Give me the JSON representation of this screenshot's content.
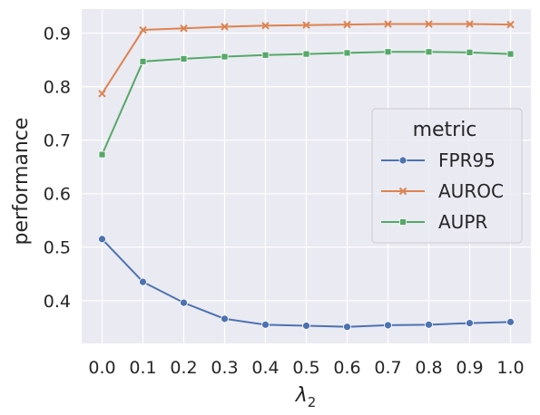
{
  "chart_data": {
    "type": "line",
    "xlabel_main": "λ",
    "xlabel_sub": "2",
    "ylabel": "performance",
    "x": [
      0.0,
      0.1,
      0.2,
      0.3,
      0.4,
      0.5,
      0.6,
      0.7,
      0.8,
      0.9,
      1.0
    ],
    "x_tick_labels": [
      "0.0",
      "0.1",
      "0.2",
      "0.3",
      "0.4",
      "0.5",
      "0.6",
      "0.7",
      "0.8",
      "0.9",
      "1.0"
    ],
    "y_ticks": [
      0.4,
      0.5,
      0.6,
      0.7,
      0.8,
      0.9
    ],
    "y_tick_labels": [
      "0.4",
      "0.5",
      "0.6",
      "0.7",
      "0.8",
      "0.9"
    ],
    "xlim": [
      -0.05,
      1.05
    ],
    "ylim": [
      0.32,
      0.945
    ],
    "grid": true,
    "legend_title": "metric",
    "legend_position": "center-right",
    "series": [
      {
        "name": "FPR95",
        "color": "#4c72b0",
        "marker": "circle",
        "values": [
          0.515,
          0.435,
          0.396,
          0.366,
          0.355,
          0.353,
          0.351,
          0.354,
          0.355,
          0.358,
          0.36
        ]
      },
      {
        "name": "AUROC",
        "color": "#dd8452",
        "marker": "x",
        "values": [
          0.787,
          0.906,
          0.909,
          0.912,
          0.914,
          0.915,
          0.916,
          0.917,
          0.917,
          0.917,
          0.916
        ]
      },
      {
        "name": "AUPR",
        "color": "#55a868",
        "marker": "square",
        "values": [
          0.673,
          0.847,
          0.852,
          0.856,
          0.859,
          0.861,
          0.863,
          0.865,
          0.865,
          0.864,
          0.861
        ]
      }
    ]
  }
}
